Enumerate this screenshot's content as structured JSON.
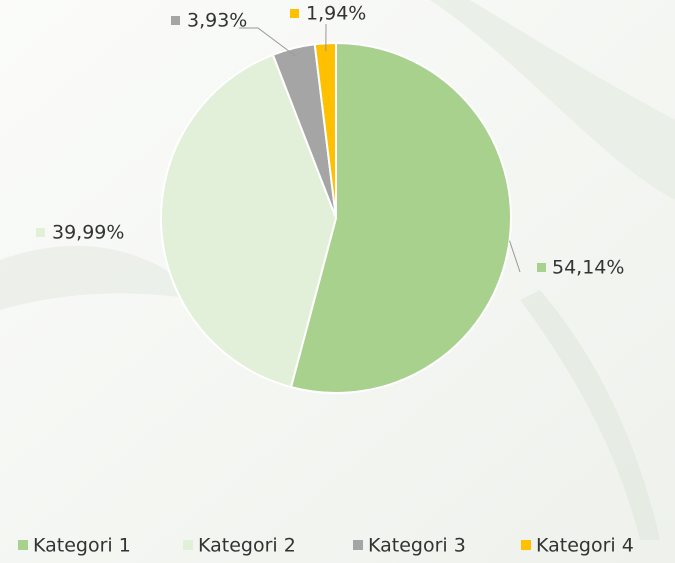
{
  "chart_data": {
    "type": "pie",
    "categories": [
      "Kategori 1",
      "Kategori 2",
      "Kategori 3",
      "Kategori 4"
    ],
    "values": [
      54.14,
      39.99,
      3.93,
      1.94
    ],
    "value_labels": [
      "54,14%",
      "39,99%",
      "3,93%",
      "1,94%"
    ],
    "colors": [
      "#a9d18e",
      "#e2efd9",
      "#a5a5a5",
      "#ffc000"
    ],
    "legend": "bottom"
  }
}
